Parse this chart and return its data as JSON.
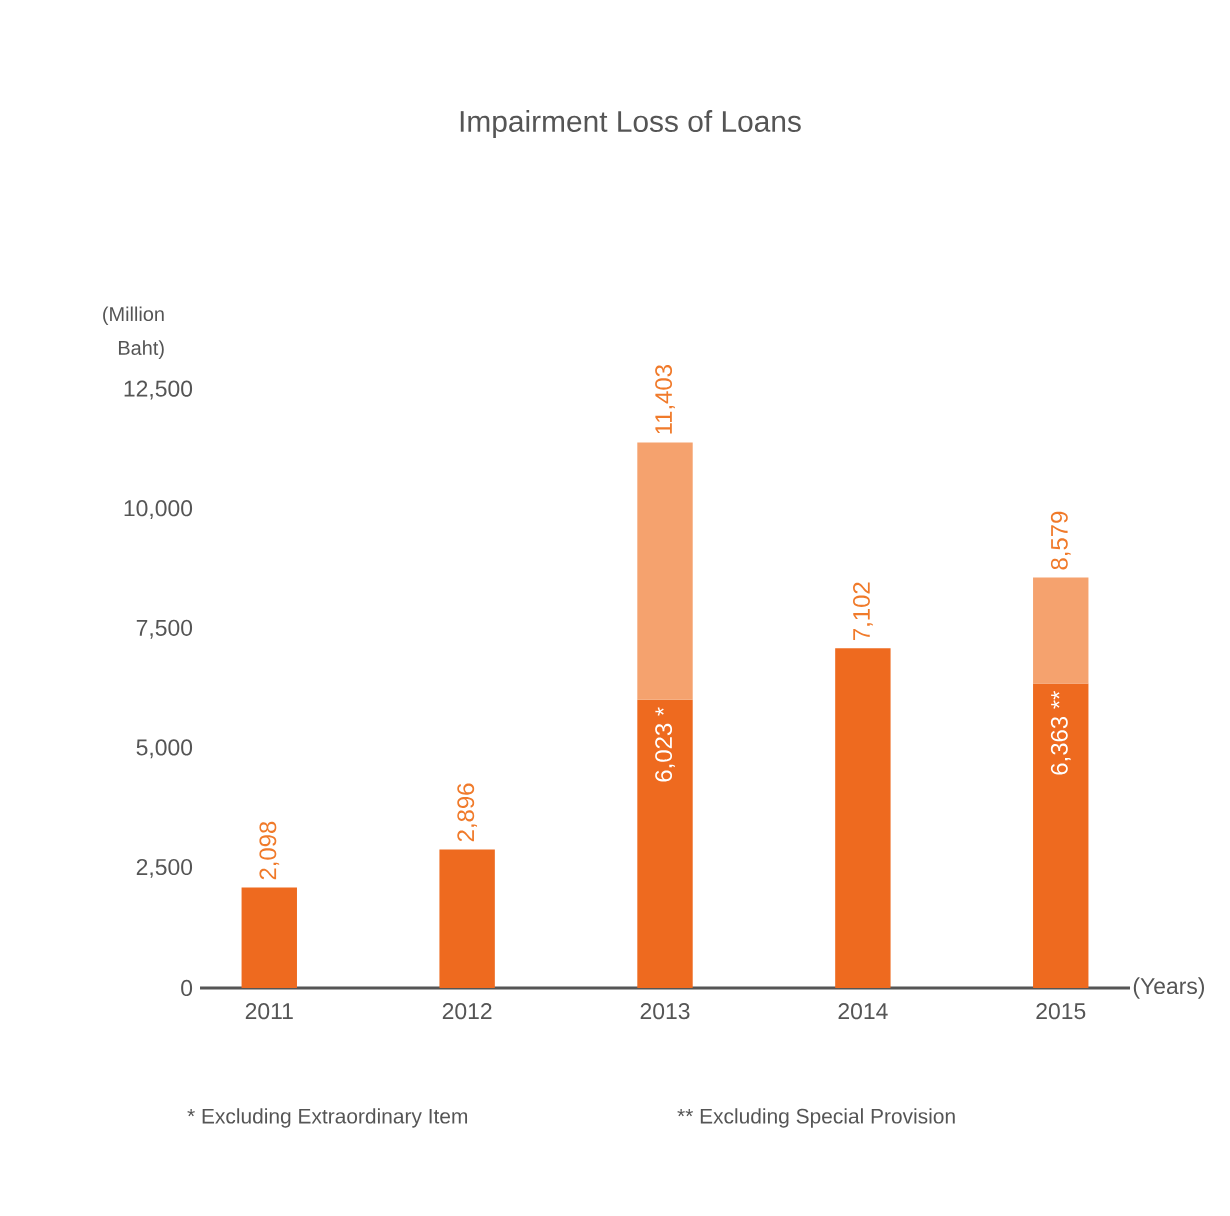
{
  "chart_data": {
    "type": "bar",
    "title": "Impairment Loss of Loans",
    "ylabel": "(Million Baht)",
    "xlabel": "(Years)",
    "categories": [
      "2011",
      "2012",
      "2013",
      "2014",
      "2015"
    ],
    "stacked": true,
    "series": [
      {
        "color": "#ee6a1f",
        "values": [
          2098,
          2896,
          6023,
          7102,
          6363
        ],
        "value_labels": [
          "2,098",
          "2,896",
          "6,023 *",
          "7,102",
          "6,363 **"
        ]
      },
      {
        "color": "#f5a26e",
        "values": [
          null,
          null,
          5380,
          null,
          2216
        ]
      }
    ],
    "totals": [
      null,
      null,
      "11,403",
      null,
      "8,579"
    ],
    "ylim": [
      0,
      12500
    ],
    "yticks": [
      0,
      {
        "value": 2500,
        "label": "2,500"
      },
      {
        "value": 5000,
        "label": "5,000"
      },
      {
        "value": 7500,
        "label": "7,500"
      },
      {
        "value": 10000,
        "label": "10,000"
      },
      {
        "value": 12500,
        "label": "12,500"
      }
    ],
    "annotations": [
      "* Excluding Extraordinary Item",
      "** Excluding Special Provision"
    ]
  }
}
